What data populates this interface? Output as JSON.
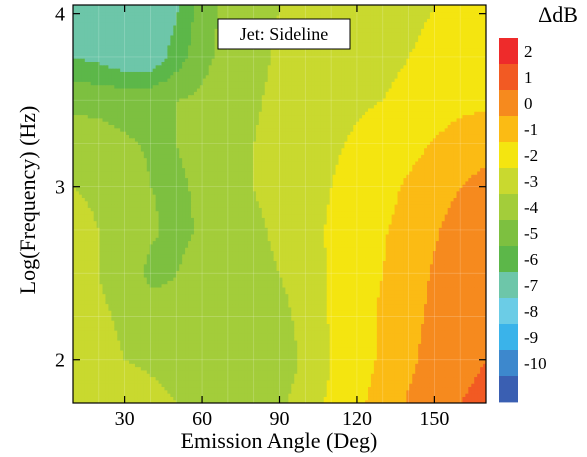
{
  "chart_data": {
    "type": "heatmap",
    "title": "Jet: Sideline",
    "xlabel": "Emission Angle (Deg)",
    "ylabel": "Log(Frequency) (Hz)",
    "x_ticks": [
      30,
      60,
      90,
      120,
      150
    ],
    "y_ticks": [
      2,
      3,
      4
    ],
    "xlim": [
      10,
      170
    ],
    "ylim": [
      1.75,
      4.05
    ],
    "colorbar": {
      "title": "ΔdB",
      "levels": [
        2,
        1,
        0,
        -1,
        -2,
        -3,
        -4,
        -5,
        -6,
        -7,
        -8,
        -9,
        -10
      ],
      "colors": [
        "#ee2b2b",
        "#f25a23",
        "#f68a1e",
        "#fbbb14",
        "#f4e510",
        "#c9d92f",
        "#a3cd3a",
        "#7dc040",
        "#5cb749",
        "#6dc6a9",
        "#6bcce6",
        "#3ab3ea",
        "#3d88cd",
        "#3a5fb2"
      ]
    },
    "x": [
      10,
      20,
      30,
      40,
      50,
      60,
      70,
      80,
      90,
      100,
      110,
      120,
      130,
      140,
      150,
      160,
      170
    ],
    "y": [
      1.75,
      2.0,
      2.25,
      2.5,
      2.75,
      3.0,
      3.25,
      3.5,
      3.75,
      4.05
    ],
    "z": [
      [
        -2.3,
        -2.3,
        -2.4,
        -2.6,
        -3.0,
        -3.1,
        -3.4,
        -3.6,
        -3.2,
        -2.5,
        -1.8,
        -1.2,
        -0.6,
        0.1,
        0.6,
        1.0,
        1.1
      ],
      [
        -2.5,
        -2.6,
        -3.0,
        -3.2,
        -3.5,
        -3.8,
        -4.0,
        -4.0,
        -3.6,
        -2.8,
        -2.0,
        -1.5,
        -0.8,
        -0.2,
        0.4,
        0.9,
        1.0
      ],
      [
        -2.5,
        -2.8,
        -3.2,
        -3.6,
        -3.8,
        -3.9,
        -3.9,
        -3.8,
        -3.4,
        -2.6,
        -1.9,
        -1.5,
        -0.8,
        -0.3,
        0.2,
        0.6,
        0.8
      ],
      [
        -2.7,
        -3.0,
        -3.5,
        -4.2,
        -4.0,
        -3.7,
        -3.4,
        -3.3,
        -3.0,
        -2.4,
        -1.9,
        -1.5,
        -1.0,
        -0.4,
        0.1,
        0.5,
        0.7
      ],
      [
        -2.8,
        -3.0,
        -3.3,
        -3.9,
        -4.2,
        -3.9,
        -3.5,
        -3.2,
        -2.8,
        -2.3,
        -1.9,
        -1.6,
        -1.1,
        -0.6,
        -0.1,
        0.4,
        0.6
      ],
      [
        -3.0,
        -3.1,
        -3.4,
        -4.0,
        -4.1,
        -3.9,
        -3.4,
        -3.0,
        -2.6,
        -2.3,
        -2.0,
        -1.7,
        -1.4,
        -0.8,
        -0.4,
        0.0,
        0.3
      ],
      [
        -3.6,
        -3.7,
        -3.9,
        -4.1,
        -4.0,
        -3.8,
        -3.4,
        -3.0,
        -2.7,
        -2.4,
        -2.1,
        -1.9,
        -1.7,
        -1.4,
        -0.9,
        -0.5,
        -0.3
      ],
      [
        -4.2,
        -4.2,
        -4.3,
        -4.2,
        -4.0,
        -3.8,
        -3.5,
        -3.1,
        -2.8,
        -2.5,
        -2.3,
        -2.1,
        -2.0,
        -1.9,
        -1.6,
        -1.3,
        -1.2
      ],
      [
        -6.0,
        -6.3,
        -6.8,
        -6.8,
        -5.5,
        -4.3,
        -3.6,
        -3.2,
        -2.9,
        -2.6,
        -2.4,
        -2.2,
        -2.1,
        -2.0,
        -1.9,
        -1.9,
        -1.9
      ],
      [
        -6.3,
        -6.5,
        -6.9,
        -7.0,
        -6.2,
        -4.5,
        -3.7,
        -3.3,
        -3.0,
        -2.7,
        -2.5,
        -2.3,
        -2.2,
        -2.1,
        -2.0,
        -2.0,
        -2.0
      ]
    ]
  }
}
